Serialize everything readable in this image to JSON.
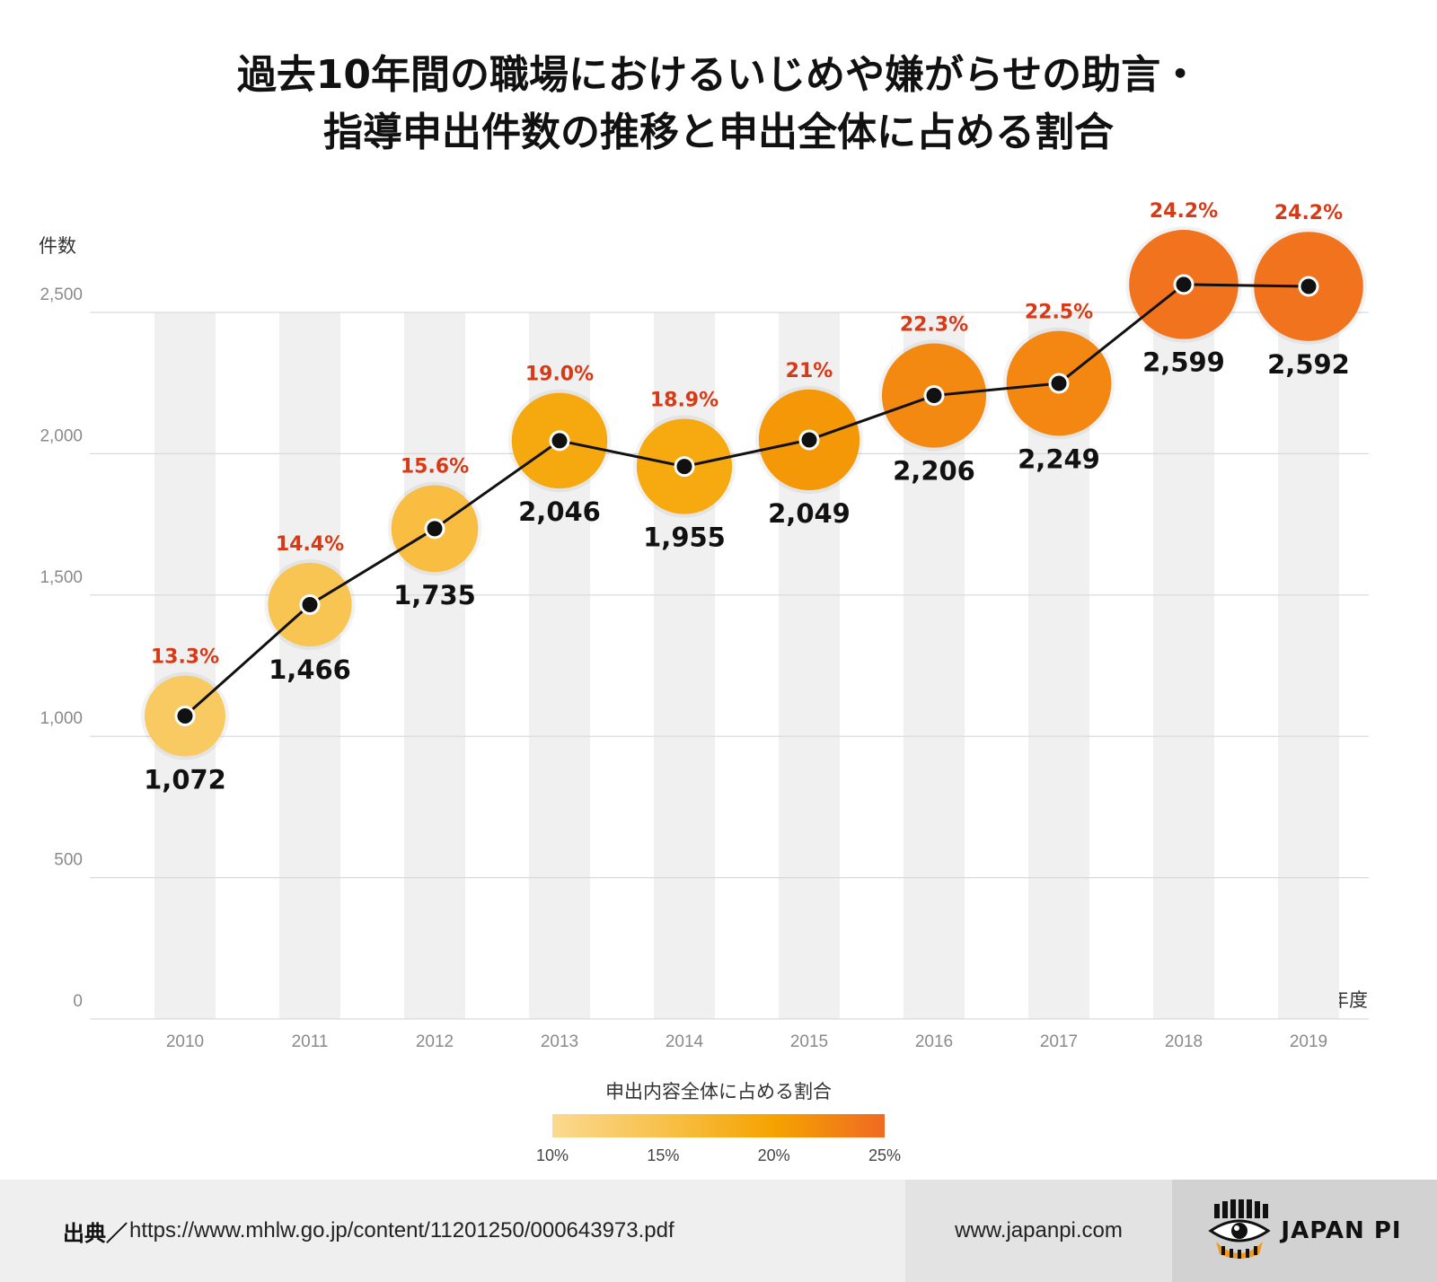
{
  "title": {
    "line1": "過去10年間の職場におけるいじめや嫌がらせの助言・",
    "line2": "指導申出件数の推移と申出全体に占める割合"
  },
  "chart_data": {
    "type": "line",
    "title": "過去10年間の職場におけるいじめや嫌がらせの助言・指導申出件数の推移と申出全体に占める割合",
    "ylabel": "件数",
    "xlabel": "年度",
    "ylim": [
      0,
      2500
    ],
    "yticks": [
      0,
      500,
      1000,
      1500,
      2000,
      2500
    ],
    "ytick_labels": [
      "0",
      "500",
      "1,000",
      "1,500",
      "2,000",
      "2,500"
    ],
    "categories": [
      "2010",
      "2011",
      "2012",
      "2013",
      "2014",
      "2015",
      "2016",
      "2017",
      "2018",
      "2019"
    ],
    "series": [
      {
        "values": [
          1072,
          1466,
          1735,
          2046,
          1955,
          2049,
          2206,
          2249,
          2599,
          2592
        ],
        "value_labels": [
          "1,072",
          "1,466",
          "1,735",
          "2,046",
          "1,955",
          "2,049",
          "2,206",
          "2,249",
          "2,599",
          "2,592"
        ]
      }
    ],
    "share_percent": [
      13.3,
      14.4,
      15.6,
      19.0,
      18.9,
      21,
      22.3,
      22.5,
      24.2,
      24.2
    ],
    "share_labels": [
      "13.3%",
      "14.4%",
      "15.6%",
      "19.0%",
      "18.9%",
      "21%",
      "22.3%",
      "22.5%",
      "24.2%",
      "24.2%"
    ],
    "color_legend": {
      "title": "申出内容全体に占める割合",
      "min": 10,
      "max": 25,
      "ticks": [
        10,
        15,
        20,
        25
      ],
      "tick_labels": [
        "10%",
        "15%",
        "20%",
        "25%"
      ],
      "colors": [
        "#fbd990",
        "#f8c14a",
        "#f5a300",
        "#f06a22"
      ]
    },
    "grid": true,
    "colors": {
      "line": "#111111",
      "percent_label": "#d63a16",
      "column_band": "#f0f0f0",
      "gridline": "#d9d9d9"
    }
  },
  "footer": {
    "source_label": "出典",
    "source_sep": "／",
    "source_url": "https://www.mhlw.go.jp/content/11201250/000643973.pdf",
    "site": "www.japanpi.com",
    "brand": "JAPAN PI",
    "brand_icon": "eye-logo-icon"
  }
}
